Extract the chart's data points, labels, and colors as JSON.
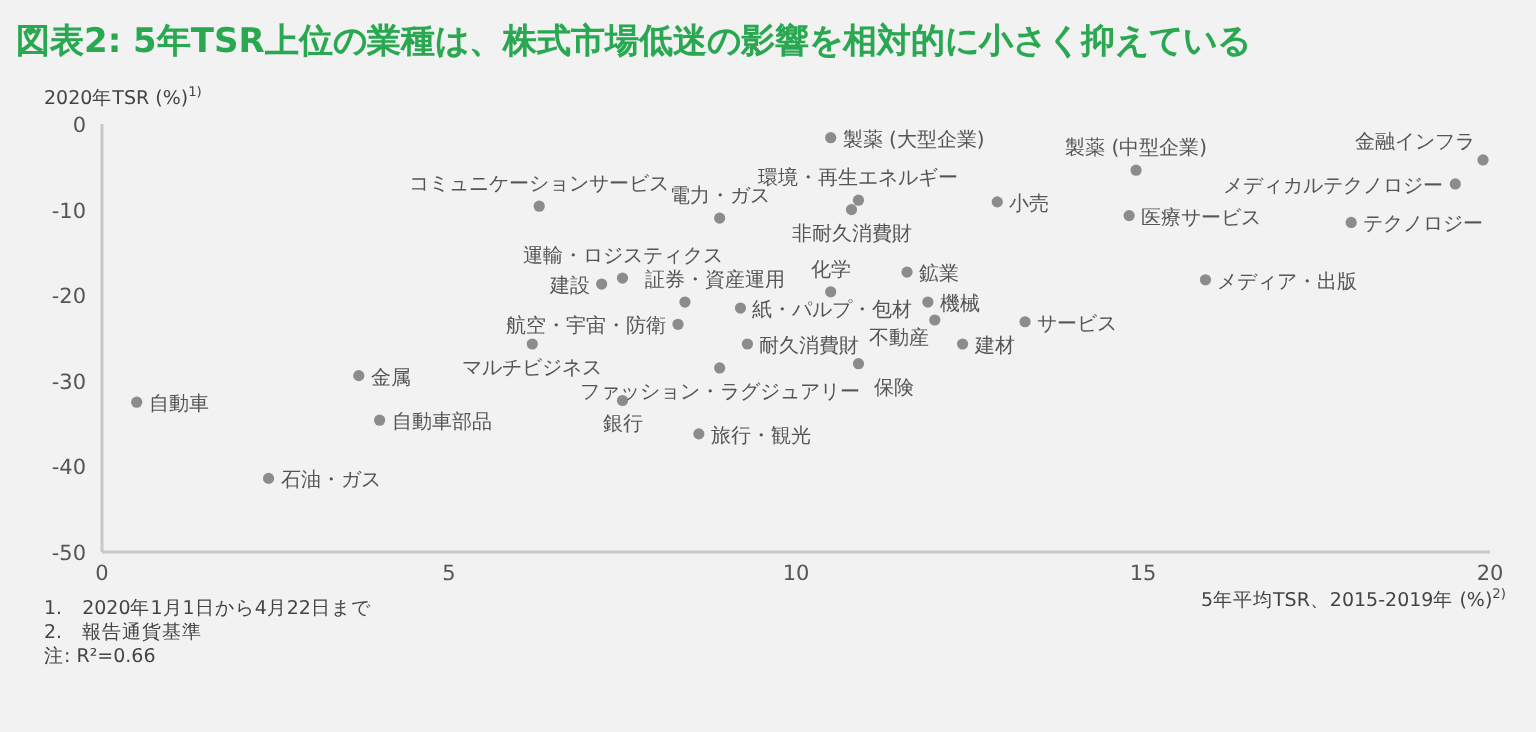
{
  "chart_data": {
    "type": "scatter",
    "title": "図表2: 5年TSR上位の業種は、株式市場低迷の影響を相対的に小さく抑えている",
    "xlabel": "5年平均TSR、2015-2019年 (%)$^{2)}$",
    "ylabel": "2020年TSR (%)$^{1)}$",
    "xlim": [
      0,
      20
    ],
    "xticks": [
      0,
      5,
      10,
      15,
      20
    ],
    "ylim": [
      -50,
      0
    ],
    "yticks": [
      -50,
      -40,
      -30,
      -20,
      -10,
      0
    ],
    "grid": false,
    "marker": "circle",
    "series": [
      {
        "color": "#8c8c8c",
        "x": [
          0.5,
          3.7,
          4.0,
          2.4,
          10.5,
          6.3,
          8.9,
          10.9,
          10.8,
          7.5,
          7.2,
          8.4,
          8.3,
          9.2,
          10.5,
          9.3,
          6.2,
          8.9,
          10.9,
          7.5,
          8.6,
          12.9,
          11.6,
          11.9,
          12.0,
          12.4,
          13.3,
          14.9,
          14.8,
          15.9,
          19.9,
          19.5,
          18.0
        ],
        "values": [
          -32.5,
          -29.4,
          -34.6,
          -41.4,
          -1.6,
          -9.6,
          -11.0,
          -8.9,
          -10.0,
          -18.0,
          -18.7,
          -20.8,
          -23.4,
          -21.5,
          -19.6,
          -25.7,
          -25.7,
          -28.5,
          -28.0,
          -32.3,
          -36.2,
          -9.1,
          -17.3,
          -20.8,
          -22.9,
          -25.7,
          -23.1,
          -5.4,
          -10.7,
          -18.2,
          -4.2,
          -7.0,
          -11.5
        ]
      }
    ],
    "annotations": [
      {
        "text": "自動車",
        "x": 0.5,
        "y": -32.5
      },
      {
        "text": "金属",
        "x": 3.7,
        "y": -29.4
      },
      {
        "text": "自動車部品",
        "x": 4.0,
        "y": -34.6
      },
      {
        "text": "石油・ガス",
        "x": 2.4,
        "y": -41.4
      },
      {
        "text": "製薬 (大型企業)",
        "x": 10.5,
        "y": -1.6
      },
      {
        "text": "コミュニケーションサービス",
        "x": 6.3,
        "y": -9.6
      },
      {
        "text": "電力・ガス",
        "x": 8.9,
        "y": -11.0
      },
      {
        "text": "環境・再生エネルギー",
        "x": 10.9,
        "y": -8.9
      },
      {
        "text": "非耐久消費財",
        "x": 10.8,
        "y": -10.0
      },
      {
        "text": "運輸・ロジスティクス",
        "x": 7.5,
        "y": -18.0
      },
      {
        "text": "建設",
        "x": 7.2,
        "y": -18.7
      },
      {
        "text": "証券・資産運用",
        "x": 8.4,
        "y": -20.8
      },
      {
        "text": "航空・宇宙・防衛",
        "x": 8.3,
        "y": -23.4
      },
      {
        "text": "紙・パルプ・包材",
        "x": 9.2,
        "y": -21.5
      },
      {
        "text": "化学",
        "x": 10.5,
        "y": -19.6
      },
      {
        "text": "耐久消費財",
        "x": 9.3,
        "y": -25.7
      },
      {
        "text": "マルチビジネス",
        "x": 6.2,
        "y": -25.7
      },
      {
        "text": "ファッション・ラグジュアリー",
        "x": 8.9,
        "y": -28.5
      },
      {
        "text": "保険",
        "x": 10.9,
        "y": -28.0
      },
      {
        "text": "銀行",
        "x": 7.5,
        "y": -32.3
      },
      {
        "text": "旅行・観光",
        "x": 8.6,
        "y": -36.2
      },
      {
        "text": "小売",
        "x": 12.9,
        "y": -9.1
      },
      {
        "text": "鉱業",
        "x": 11.6,
        "y": -17.3
      },
      {
        "text": "機械",
        "x": 11.9,
        "y": -20.8
      },
      {
        "text": "不動産",
        "x": 12.0,
        "y": -22.9
      },
      {
        "text": "建材",
        "x": 12.4,
        "y": -25.7
      },
      {
        "text": "サービス",
        "x": 13.3,
        "y": -23.1
      },
      {
        "text": "製薬 (中型企業)",
        "x": 14.9,
        "y": -5.4
      },
      {
        "text": "医療サービス",
        "x": 14.8,
        "y": -10.7
      },
      {
        "text": "メディア・出版",
        "x": 15.9,
        "y": -18.2
      },
      {
        "text": "金融インフラ",
        "x": 19.9,
        "y": -4.2
      },
      {
        "text": "メディカルテクノロジー",
        "x": 19.5,
        "y": -7.0
      },
      {
        "text": "テクノロジー",
        "x": 18.0,
        "y": -11.5
      },
      "1.　2020年1月1日から4月22日まで",
      "2.　報告通貨基準",
      "注: R²=0.66"
    ]
  }
}
